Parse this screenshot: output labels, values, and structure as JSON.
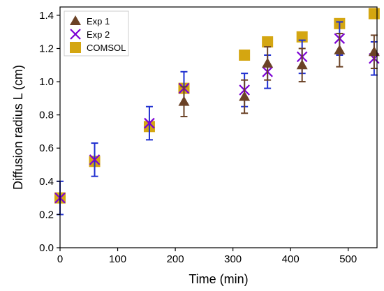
{
  "chart_data": {
    "type": "scatter",
    "xlabel": "Time (min)",
    "ylabel": "Diffusion radius L (cm)",
    "xlim": [
      0,
      550
    ],
    "ylim": [
      0,
      1.45
    ],
    "x_ticks": [
      0,
      100,
      200,
      300,
      400,
      500
    ],
    "y_ticks": [
      0.0,
      0.2,
      0.4,
      0.6,
      0.8,
      1.0,
      1.2,
      1.4
    ],
    "x_tick_labels": [
      "0",
      "100",
      "200",
      "300",
      "400",
      "500"
    ],
    "y_tick_labels": [
      "0.0",
      "0.2",
      "0.4",
      "0.6",
      "0.8",
      "1.0",
      "1.2",
      "1.4"
    ],
    "grid": false,
    "legend_position": "top-left",
    "series": [
      {
        "name": "Exp 1",
        "marker": "triangle",
        "color": "#6b4226",
        "error_color": "#6b4226",
        "x": [
          215,
          320,
          360,
          420,
          485,
          545
        ],
        "y": [
          0.88,
          0.91,
          1.11,
          1.1,
          1.19,
          1.18
        ],
        "err": [
          0.09,
          0.1,
          0.1,
          0.1,
          0.1,
          0.1
        ]
      },
      {
        "name": "Exp 2",
        "marker": "x",
        "color": "#7b00d4",
        "error_color": "#1f2fd0",
        "x": [
          0,
          60,
          155,
          215,
          320,
          360,
          420,
          485,
          545
        ],
        "y": [
          0.3,
          0.53,
          0.75,
          0.96,
          0.95,
          1.06,
          1.15,
          1.26,
          1.14
        ],
        "err": [
          0.1,
          0.1,
          0.1,
          0.1,
          0.1,
          0.1,
          0.1,
          0.1,
          0.1
        ]
      },
      {
        "name": "COMSOL",
        "marker": "square",
        "color": "#d4a611",
        "error_color": "#1f2fd0",
        "x": [
          0,
          60,
          155,
          215,
          320,
          360,
          420,
          485,
          545
        ],
        "y": [
          0.3,
          0.52,
          0.73,
          0.96,
          1.16,
          1.24,
          1.27,
          1.35,
          1.41
        ],
        "err": [
          0,
          0,
          0,
          0,
          0,
          0,
          0,
          0,
          0
        ]
      }
    ]
  }
}
